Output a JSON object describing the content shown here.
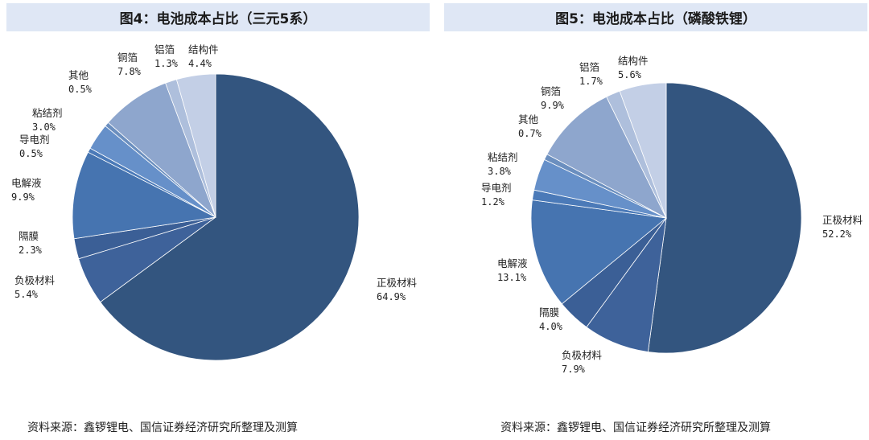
{
  "source_left": "资料来源：鑫锣锂电、国信证券经济研究所整理及测算",
  "source_right": "资料来源：鑫锣锂电、国信证券经济研究所整理及测算",
  "colors": {
    "title_bar": "#dfe7f5",
    "slices": [
      "#33557f",
      "#3e629a",
      "#3b5f96",
      "#4674b0",
      "#4b7ab8",
      "#6690c9",
      "#6b8fbf",
      "#8ea6cd",
      "#aebfdc",
      "#c3cfe6",
      "#d0d8ea"
    ]
  },
  "chart_data": [
    {
      "type": "pie",
      "title": "图4：电池成本占比（三元5系）",
      "slices": [
        {
          "label": "正极材料",
          "value": 64.9,
          "value_text": "64.9%"
        },
        {
          "label": "负极材料",
          "value": 5.4,
          "value_text": "5.4%"
        },
        {
          "label": "隔膜",
          "value": 2.3,
          "value_text": "2.3%"
        },
        {
          "label": "电解液",
          "value": 9.9,
          "value_text": "9.9%"
        },
        {
          "label": "导电剂",
          "value": 0.5,
          "value_text": "0.5%"
        },
        {
          "label": "粘结剂",
          "value": 3.0,
          "value_text": "3.0%"
        },
        {
          "label": "其他",
          "value": 0.5,
          "value_text": "0.5%"
        },
        {
          "label": "铜箔",
          "value": 7.8,
          "value_text": "7.8%"
        },
        {
          "label": "铝箔",
          "value": 1.3,
          "value_text": "1.3%"
        },
        {
          "label": "结构件",
          "value": 4.4,
          "value_text": "4.4%"
        }
      ]
    },
    {
      "type": "pie",
      "title": "图5：电池成本占比（磷酸铁锂）",
      "slices": [
        {
          "label": "正极材料",
          "value": 52.2,
          "value_text": "52.2%"
        },
        {
          "label": "负极材料",
          "value": 7.9,
          "value_text": "7.9%"
        },
        {
          "label": "隔膜",
          "value": 4.0,
          "value_text": "4.0%"
        },
        {
          "label": "电解液",
          "value": 13.1,
          "value_text": "13.1%"
        },
        {
          "label": "导电剂",
          "value": 1.2,
          "value_text": "1.2%"
        },
        {
          "label": "粘结剂",
          "value": 3.8,
          "value_text": "3.8%"
        },
        {
          "label": "其他",
          "value": 0.7,
          "value_text": "0.7%"
        },
        {
          "label": "铜箔",
          "value": 9.9,
          "value_text": "9.9%"
        },
        {
          "label": "铝箔",
          "value": 1.7,
          "value_text": "1.7%"
        },
        {
          "label": "结构件",
          "value": 5.6,
          "value_text": "5.6%"
        }
      ]
    }
  ]
}
